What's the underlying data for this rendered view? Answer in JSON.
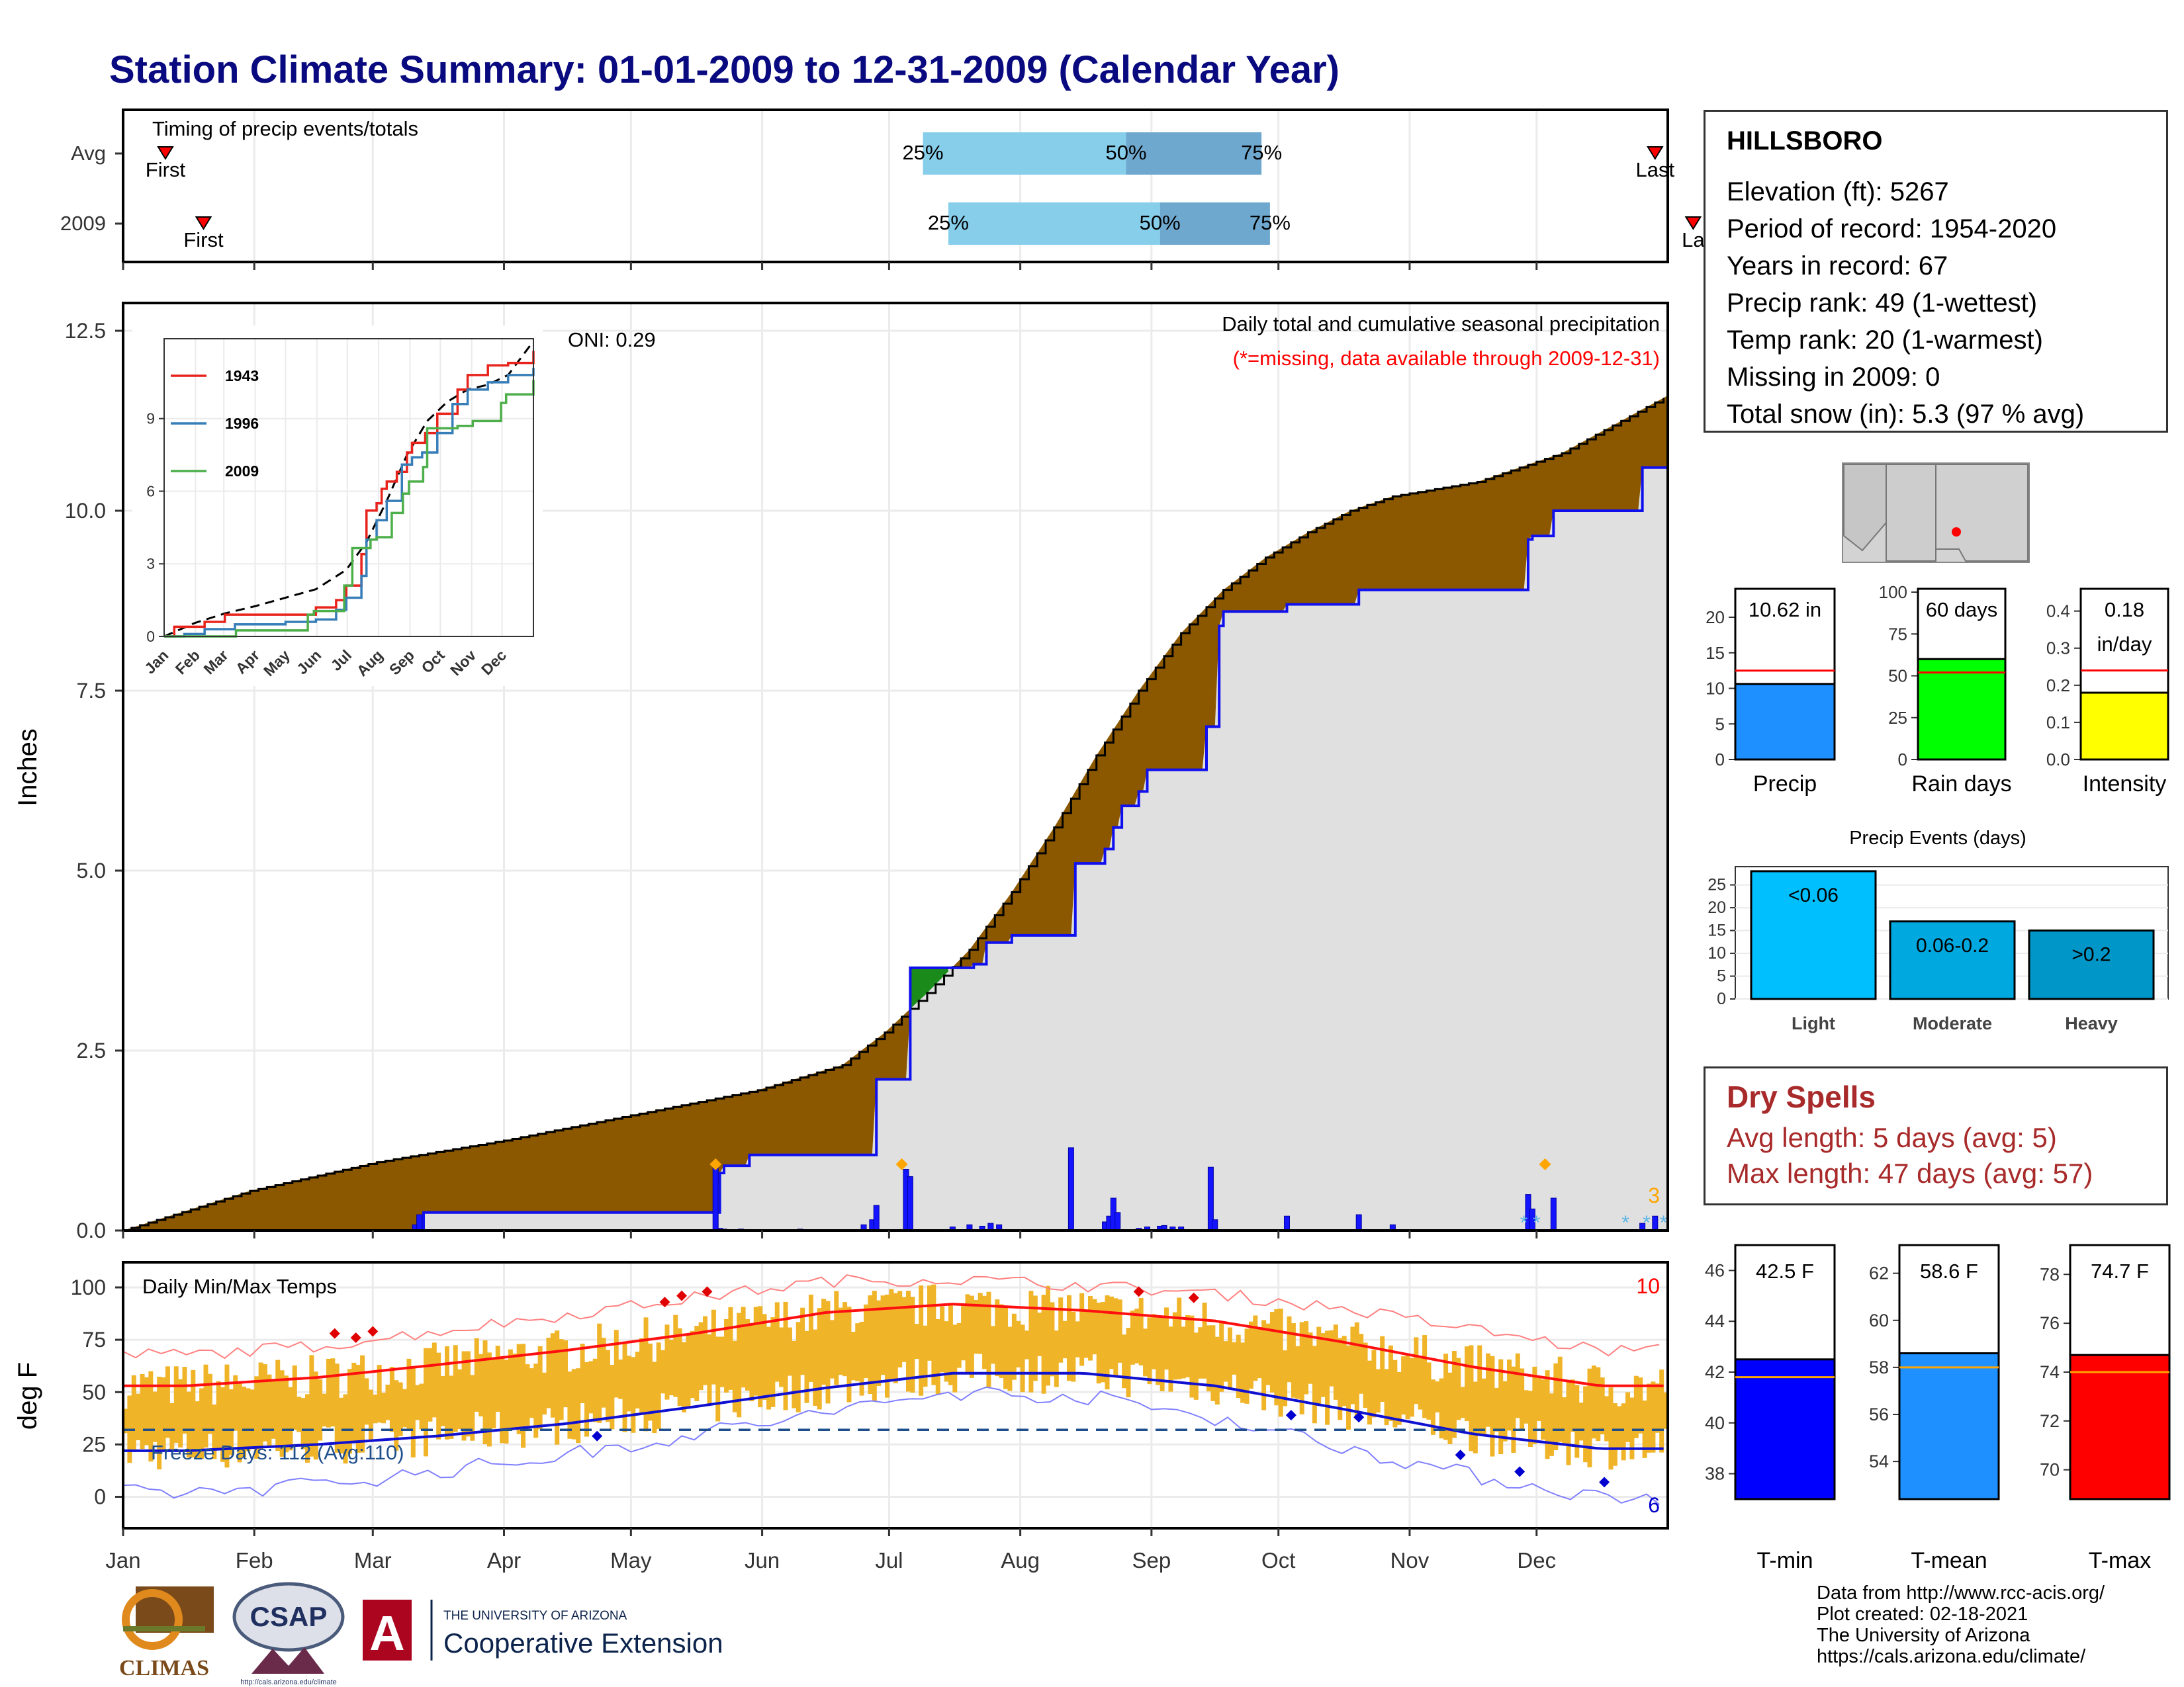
{
  "title": "Station Climate Summary: 01-01-2009 to 12-31-2009 (Calendar Year)",
  "colors": {
    "navy_title": "#0a0a80",
    "cumulative_fill": "#8b5800",
    "deficit_green": "#1a8a1a",
    "observed_blue": "#1010ee",
    "light_gray": "#e0e0e0",
    "temp_bar": "#f0b429",
    "normal_max": "#ff1010",
    "normal_min": "#1010d0"
  },
  "timing_panel": {
    "title": "Timing of precip events/totals",
    "rows": [
      {
        "label": "Avg",
        "first_label": "First",
        "last_label": "Last",
        "first_doy": 10,
        "last_doy": 362,
        "q25_label": "25%",
        "q50_label": "50%",
        "q75_label": "75%",
        "q25_doy": 189,
        "q50_doy": 237,
        "q75_doy": 269
      },
      {
        "label": "2009",
        "first_label": "First",
        "last_label": "La",
        "first_doy": 19,
        "last_doy": 371,
        "q25_label": "25%",
        "q50_label": "50%",
        "q75_label": "75%",
        "q25_doy": 195,
        "q50_doy": 245,
        "q75_doy": 271
      }
    ]
  },
  "precip_panel": {
    "ylabel": "Inches",
    "yticks": [
      "0.0",
      "2.5",
      "5.0",
      "7.5",
      "10.0",
      "12.5"
    ],
    "ylim": [
      0,
      12.5
    ],
    "caption1": "Daily total and cumulative seasonal precipitation",
    "caption2": "(*=missing, data available through 2009-12-31)",
    "oni": "ONI: 0.29",
    "corner_value": "3",
    "normal_cumulative": {
      "doy": [
        0,
        30,
        60,
        90,
        120,
        150,
        170,
        180,
        190,
        200,
        210,
        220,
        230,
        240,
        250,
        260,
        270,
        280,
        290,
        300,
        320,
        340,
        365
      ],
      "inches": [
        0.0,
        0.55,
        0.95,
        1.25,
        1.6,
        1.95,
        2.3,
        2.75,
        3.3,
        3.9,
        4.7,
        5.6,
        6.6,
        7.5,
        8.3,
        8.9,
        9.35,
        9.7,
        10.0,
        10.2,
        10.4,
        10.8,
        11.6
      ]
    },
    "observed_cumulative": {
      "doy": [
        0,
        69,
        71,
        140,
        141,
        142,
        148,
        176,
        178,
        185,
        186,
        197,
        201,
        204,
        210,
        224,
        225,
        232,
        234,
        236,
        240,
        242,
        256,
        259,
        260,
        270,
        275,
        282,
        290,
        292,
        305,
        332,
        333,
        338,
        355,
        359,
        365
      ],
      "inches": [
        0.0,
        0.0,
        0.25,
        0.25,
        0.8,
        0.9,
        1.05,
        1.05,
        2.1,
        2.1,
        3.65,
        3.65,
        3.7,
        4.0,
        4.1,
        4.1,
        5.1,
        5.3,
        5.6,
        5.9,
        6.1,
        6.4,
        7.0,
        8.4,
        8.6,
        8.6,
        8.7,
        8.7,
        8.7,
        8.9,
        8.9,
        9.6,
        9.65,
        10.0,
        10.0,
        10.6,
        10.6
      ]
    },
    "daily_bars": {
      "doy": [
        69,
        70,
        140,
        141,
        142,
        146,
        151,
        160,
        175,
        177,
        178,
        185,
        186,
        196,
        200,
        203,
        205,
        207,
        224,
        232,
        233,
        234,
        235,
        240,
        242,
        245,
        246,
        248,
        250,
        257,
        258,
        275,
        292,
        300,
        332,
        333,
        338,
        359,
        362
      ],
      "inches": [
        0.08,
        0.22,
        0.9,
        0.03,
        0.02,
        0.02,
        0.01,
        0.02,
        0.08,
        0.15,
        0.35,
        0.85,
        0.75,
        0.05,
        0.08,
        0.06,
        0.1,
        0.08,
        1.15,
        0.12,
        0.2,
        0.45,
        0.25,
        0.03,
        0.05,
        0.06,
        0.07,
        0.05,
        0.05,
        0.88,
        0.15,
        0.2,
        0.22,
        0.08,
        0.5,
        0.3,
        0.45,
        0.1,
        0.2
      ]
    },
    "snow_markers_doy": [
      140,
      184,
      336
    ],
    "missing_markers_doy": [
      331,
      334,
      355,
      360,
      364
    ]
  },
  "inset_chart": {
    "series": [
      {
        "name": "1943",
        "color": "#e8231c",
        "x": [
          0,
          10,
          40,
          60,
          150,
          170,
          180,
          195,
          200,
          210,
          215,
          220,
          230,
          240,
          245,
          258,
          270,
          290,
          300,
          320,
          340,
          365
        ],
        "y": [
          0,
          0.4,
          0.6,
          0.9,
          1.2,
          1.5,
          2.1,
          3.4,
          5.2,
          5.5,
          6.1,
          6.4,
          6.8,
          7.6,
          8.0,
          8.4,
          9.2,
          10.2,
          10.8,
          11.2,
          11.3,
          11.8
        ]
      },
      {
        "name": "1996",
        "color": "#377eb8",
        "x": [
          0,
          20,
          40,
          70,
          120,
          150,
          170,
          180,
          195,
          200,
          210,
          220,
          235,
          245,
          255,
          270,
          285,
          300,
          320,
          340,
          365
        ],
        "y": [
          0,
          0.1,
          0.3,
          0.5,
          0.6,
          0.7,
          1.1,
          1.6,
          2.5,
          4.0,
          4.8,
          5.6,
          7.1,
          7.4,
          7.6,
          8.4,
          9.6,
          10.2,
          10.5,
          10.8,
          11.1
        ]
      },
      {
        "name": "2009",
        "color": "#4daf4a",
        "x": [
          0,
          69,
          71,
          140,
          142,
          148,
          176,
          178,
          185,
          186,
          197,
          204,
          210,
          225,
          236,
          242,
          256,
          260,
          290,
          305,
          333,
          338,
          365
        ],
        "y": [
          0,
          0,
          0.25,
          0.25,
          0.9,
          1.05,
          1.05,
          2.1,
          2.1,
          3.65,
          3.65,
          4.0,
          4.1,
          5.1,
          5.9,
          6.4,
          7.0,
          8.6,
          8.7,
          8.9,
          9.65,
          10.0,
          10.6
        ]
      }
    ],
    "normal": {
      "x": [
        0,
        30,
        60,
        90,
        120,
        150,
        180,
        200,
        220,
        240,
        260,
        280,
        300,
        320,
        340,
        365
      ],
      "y": [
        0,
        0.55,
        0.95,
        1.25,
        1.6,
        1.95,
        2.75,
        3.9,
        5.6,
        7.5,
        8.9,
        9.7,
        10.2,
        10.4,
        10.8,
        12.2
      ]
    },
    "yticks": [
      "0",
      "3",
      "6",
      "9"
    ],
    "ylim": [
      0,
      12.3
    ],
    "months": [
      "Jan",
      "Feb",
      "Mar",
      "Apr",
      "May",
      "Jun",
      "Jul",
      "Aug",
      "Sep",
      "Oct",
      "Nov",
      "Dec"
    ]
  },
  "temp_panel": {
    "ylabel": "deg F",
    "title": "Daily Min/Max Temps",
    "yticks": [
      "0",
      "25",
      "50",
      "75",
      "100"
    ],
    "ylim": [
      -15,
      112
    ],
    "freeze_label": "Freeze Days: 112 (Avg:110)",
    "freeze_line": 32,
    "corner_max_count": "10",
    "corner_min_count": "6",
    "normal_max_monthly": [
      53,
      57,
      63,
      70,
      78,
      88,
      92,
      89,
      84,
      74,
      62,
      53
    ],
    "normal_min_monthly": [
      22,
      25,
      29,
      35,
      43,
      52,
      59,
      59,
      53,
      42,
      30,
      23
    ],
    "record_max_monthly": [
      68,
      72,
      79,
      87,
      95,
      103,
      104,
      101,
      97,
      90,
      80,
      70
    ],
    "record_min_monthly": [
      2,
      6,
      12,
      20,
      30,
      40,
      50,
      48,
      38,
      24,
      10,
      0
    ]
  },
  "months": [
    "Jan",
    "Feb",
    "Mar",
    "Apr",
    "May",
    "Jun",
    "Jul",
    "Aug",
    "Sep",
    "Oct",
    "Nov",
    "Dec"
  ],
  "station": {
    "name": "HILLSBORO",
    "lines": [
      "Elevation (ft): 5267",
      "Period of record: 1954-2020",
      "Years in record: 67",
      "Precip rank: 49 (1-wettest)",
      "Temp rank: 20 (1-warmest)",
      "Missing in 2009: 0",
      "Total snow (in): 5.3 (97 % avg)"
    ]
  },
  "summary_bars": [
    {
      "label": "Precip",
      "value_text": "10.62 in",
      "value": 10.62,
      "normal": 12.5,
      "ymax": 24,
      "yticks": [
        0,
        5,
        10,
        15,
        20
      ],
      "tick_labels": [
        "0",
        "5",
        "10",
        "15",
        "20"
      ],
      "color": "#1e90ff"
    },
    {
      "label": "Rain days",
      "value_text": "60 days",
      "value": 60,
      "normal": 52,
      "ymax": 102,
      "yticks": [
        0,
        25,
        50,
        75,
        100
      ],
      "tick_labels": [
        "0",
        "25",
        "50",
        "75",
        "100"
      ],
      "color": "#00ff00"
    },
    {
      "label": "Intensity",
      "value_text": "0.18",
      "value_text2": "in/day",
      "value": 0.18,
      "normal": 0.24,
      "ymax": 0.46,
      "yticks": [
        0.0,
        0.1,
        0.2,
        0.3,
        0.4
      ],
      "tick_labels": [
        "0.0",
        "0.1",
        "0.2",
        "0.3",
        "0.4"
      ],
      "color": "#ffff00"
    }
  ],
  "precip_events": {
    "title": "Precip Events (days)",
    "categories": [
      "Light",
      "Moderate",
      "Heavy"
    ],
    "bar_labels": [
      "<0.06",
      "0.06-0.2",
      ">0.2"
    ],
    "values": [
      28,
      17,
      15
    ],
    "ymax": 29,
    "yticks": [
      "0",
      "5",
      "10",
      "15",
      "20",
      "25"
    ],
    "colors": [
      "#00bfff",
      "#00a8e0",
      "#0096c8"
    ]
  },
  "dry_spells": {
    "title": "Dry Spells",
    "avg_line": "Avg length: 5 days (avg: 5)",
    "max_line": "Max length: 47 days (avg: 57)"
  },
  "temp_bars": [
    {
      "label": "T-min",
      "value_text": "42.5 F",
      "value": 42.5,
      "normal": 41.8,
      "ymin": 37,
      "ymax": 47,
      "tick_labels": [
        "38",
        "40",
        "42",
        "44",
        "46"
      ],
      "ticks": [
        38,
        40,
        42,
        44,
        46
      ],
      "color": "#0000ff"
    },
    {
      "label": "T-mean",
      "value_text": "58.6 F",
      "value": 58.6,
      "normal": 58.0,
      "ymin": 52.4,
      "ymax": 63.2,
      "tick_labels": [
        "54",
        "56",
        "58",
        "60",
        "62"
      ],
      "ticks": [
        54,
        56,
        58,
        60,
        62
      ],
      "color": "#1e90ff"
    },
    {
      "label": "T-max",
      "value_text": "74.7 F",
      "value": 74.7,
      "normal": 74.0,
      "ymin": 68.8,
      "ymax": 79.2,
      "tick_labels": [
        "70",
        "72",
        "74",
        "76",
        "78"
      ],
      "ticks": [
        70,
        72,
        74,
        76,
        78
      ],
      "color": "#ff0000"
    }
  ],
  "logos": {
    "climas": "CLIMAS",
    "csap": "CSAP",
    "csap_url": "http://cals.arizona.edu/climate",
    "ua_top": "THE UNIVERSITY OF ARIZONA",
    "ua_bottom": "Cooperative Extension"
  },
  "credits": [
    "Data from http://www.rcc-acis.org/",
    "Plot created: 02-18-2021",
    "The University of Arizona",
    "https://cals.arizona.edu/climate/"
  ]
}
